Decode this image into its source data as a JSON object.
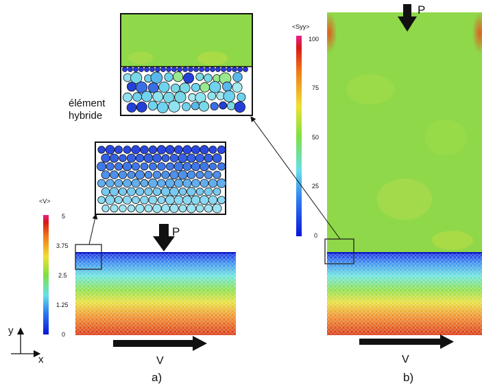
{
  "panel_a": {
    "colorbar_title": "<V>",
    "colorbar_ticks": [
      "5",
      "3.75",
      "2.5",
      "1.25",
      "0"
    ],
    "force_label": "P",
    "velocity_label": "V",
    "axis_y": "y",
    "axis_x": "x",
    "caption": "a)"
  },
  "panel_b": {
    "colorbar_title": "<Syy>",
    "colorbar_ticks": [
      "100",
      "75",
      "50",
      "25",
      "0"
    ],
    "force_label": "P",
    "velocity_label": "V",
    "caption": "b)"
  },
  "zoom_annotation_line1": "élément",
  "zoom_annotation_line2": "hybride",
  "colors": {
    "stress_field": "#8fd84a",
    "colormap": [
      "#0a14d8",
      "#2e7bf0",
      "#66e0e8",
      "#7fe040",
      "#f0e030",
      "#f07a18",
      "#d81818",
      "#e8208c"
    ],
    "particle_outline": "#111111"
  }
}
